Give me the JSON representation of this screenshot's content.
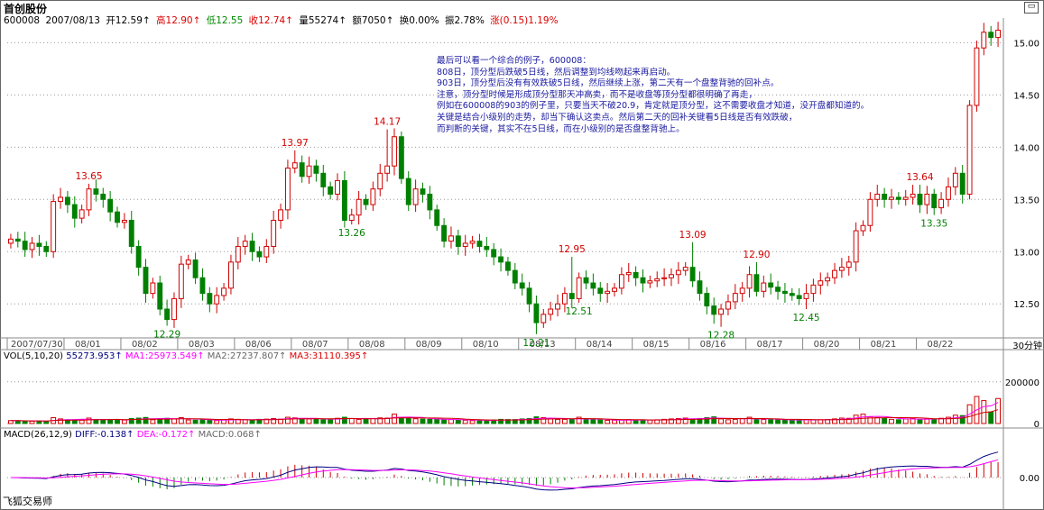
{
  "app": {
    "stock_name": "首创股份",
    "timeframe": "30分钟",
    "brand": "飞狐交易师",
    "title_button_icon": "restore-window-icon"
  },
  "quote": {
    "code": "600008",
    "date": "2007/08/13",
    "open": "开12.59↑",
    "high": "高12.90↑",
    "low": "低12.55",
    "close": "收12.74↑",
    "volume": "量55274↑",
    "amount": "额7050↑",
    "turnover": "换0.00%",
    "amplitude": "振2.78%",
    "change": "涨(0.15)1.19%"
  },
  "note": [
    "最后可以看一个综合的例子，600008：",
    "808日，顶分型后跌破5日线，然后调整到均线吻起来再启动。",
    "903日，顶分型后没有有效跌破5日线，然后继续上涨，第二天有一个盘整背驰的回补点。",
    "注意，顶分型时候是形成顶分型那天冲高卖，而不是收盘等顶分型都很明确了再走，",
    "例如在600008的903的例子里，只要当天不破20.9，肯定就是顶分型，这不需要收盘才知道，没开盘都知道的。",
    "关键是结合小级别的走势，却当下确认这卖点。然后第二天的回补关键看5日线是否有效跌破，",
    "而判断的关键，其实不在5日线，而在小级别的是否盘整背驰上。"
  ],
  "colors": {
    "up": "#d00000",
    "down": "#008000",
    "ma1": "#ff00ff",
    "ma3": "#d00000",
    "diff": "#000080",
    "dea": "#ff00ff",
    "note": "#1a1aa0"
  },
  "price_axis": {
    "min": 12.2,
    "max": 15.15,
    "ticks": [
      "15.00",
      "14.50",
      "14.00",
      "13.50",
      "13.00",
      "12.50"
    ]
  },
  "vol_axis": {
    "ticks": [
      "200000",
      "0"
    ]
  },
  "macd_axis": {
    "ticks": [
      "0.00"
    ]
  },
  "date_labels": [
    "2007/07/30",
    "08/01",
    "08/02",
    "08/03",
    "08/06",
    "08/07",
    "08/08",
    "08/09",
    "08/10",
    "08/13",
    "08/14",
    "08/15",
    "08/16",
    "08/17",
    "08/20",
    "08/21",
    "08/22"
  ],
  "vol_header": {
    "label": "VOL(5,10,20)",
    "vol": "55273.953↑",
    "ma1": "MA1:25973.549↑",
    "ma2": "MA2:27237.807↑",
    "ma3": "MA3:31110.395↑"
  },
  "macd_header": {
    "label": "MACD(26,12,9)",
    "diff": "DIFF:-0.138↑",
    "dea": "DEA:-0.172↑",
    "macd": "MACD:0.068↑"
  },
  "chart_data": {
    "type": "candlestick",
    "bars_per_day": 8,
    "annotations": [
      {
        "text": "13.65",
        "kind": "high",
        "bar": 11,
        "value": 13.65
      },
      {
        "text": "12.29",
        "kind": "low",
        "bar": 22,
        "value": 12.29
      },
      {
        "text": "13.97",
        "kind": "high",
        "bar": 40,
        "value": 13.97
      },
      {
        "text": "13.26",
        "kind": "low",
        "bar": 48,
        "value": 13.26
      },
      {
        "text": "14.17",
        "kind": "high",
        "bar": 53,
        "value": 14.17
      },
      {
        "text": "12.21",
        "kind": "low",
        "bar": 74,
        "value": 12.21
      },
      {
        "text": "12.95",
        "kind": "high",
        "bar": 79,
        "value": 12.95
      },
      {
        "text": "12.51",
        "kind": "low",
        "bar": 80,
        "value": 12.51
      },
      {
        "text": "13.09",
        "kind": "high",
        "bar": 96,
        "value": 13.09
      },
      {
        "text": "12.28",
        "kind": "low",
        "bar": 100,
        "value": 12.28
      },
      {
        "text": "12.90",
        "kind": "high",
        "bar": 105,
        "value": 12.9
      },
      {
        "text": "12.45",
        "kind": "low",
        "bar": 112,
        "value": 12.45
      },
      {
        "text": "13.64",
        "kind": "high",
        "bar": 128,
        "value": 13.64
      },
      {
        "text": "13.35",
        "kind": "low",
        "bar": 130,
        "value": 13.35
      }
    ],
    "close": [
      13.12,
      13.1,
      13.02,
      13.08,
      13.05,
      13.0,
      13.48,
      13.52,
      13.45,
      13.32,
      13.4,
      13.6,
      13.55,
      13.5,
      13.38,
      13.28,
      13.3,
      13.05,
      12.85,
      12.6,
      12.7,
      12.45,
      12.35,
      12.55,
      12.88,
      12.92,
      12.75,
      12.6,
      12.5,
      12.58,
      12.65,
      12.9,
      13.05,
      13.1,
      13.0,
      12.95,
      13.05,
      13.3,
      13.4,
      13.8,
      13.85,
      13.72,
      13.82,
      13.75,
      13.62,
      13.55,
      13.68,
      13.3,
      13.35,
      13.5,
      13.45,
      13.6,
      13.75,
      13.82,
      14.1,
      13.7,
      13.45,
      13.6,
      13.55,
      13.4,
      13.25,
      13.1,
      13.15,
      13.05,
      13.08,
      13.1,
      13.05,
      13.02,
      12.95,
      12.9,
      12.82,
      12.7,
      12.65,
      12.5,
      12.32,
      12.4,
      12.45,
      12.5,
      12.6,
      12.55,
      12.75,
      12.7,
      12.65,
      12.6,
      12.62,
      12.65,
      12.78,
      12.8,
      12.75,
      12.7,
      12.72,
      12.74,
      12.75,
      12.78,
      12.82,
      12.85,
      12.72,
      12.6,
      12.48,
      12.4,
      12.45,
      12.52,
      12.6,
      12.65,
      12.78,
      12.62,
      12.7,
      12.66,
      12.62,
      12.6,
      12.58,
      12.55,
      12.6,
      12.68,
      12.72,
      12.75,
      12.82,
      12.85,
      12.9,
      13.2,
      13.25,
      13.5,
      13.55,
      13.5,
      13.52,
      13.5,
      13.52,
      13.55,
      13.45,
      13.55,
      13.42,
      13.5,
      13.62,
      13.75,
      13.55,
      14.4,
      14.95,
      15.1,
      15.05,
      15.12
    ],
    "volume": [
      14000,
      13500,
      12000,
      11000,
      12000,
      11000,
      28000,
      22000,
      18000,
      17000,
      16000,
      26000,
      19000,
      18000,
      17500,
      17000,
      16500,
      24000,
      26000,
      29000,
      18000,
      23000,
      25000,
      22000,
      28000,
      17000,
      16000,
      18000,
      15000,
      14000,
      17000,
      22000,
      20000,
      18000,
      17000,
      20000,
      21000,
      24000,
      21000,
      30000,
      27000,
      24000,
      22000,
      20000,
      18000,
      21000,
      25000,
      30000,
      24000,
      20000,
      22000,
      24000,
      27000,
      26000,
      45000,
      30000,
      26000,
      23000,
      21000,
      20000,
      20000,
      18000,
      19000,
      17000,
      16000,
      14000,
      15000,
      14000,
      17000,
      20000,
      19000,
      19000,
      22000,
      24000,
      32000,
      28000,
      23000,
      19000,
      20000,
      21000,
      30000,
      19000,
      18000,
      17000,
      15000,
      16000,
      17000,
      18000,
      17000,
      16000,
      17000,
      18000,
      20000,
      22000,
      24000,
      26000,
      21000,
      24000,
      28000,
      32000,
      22000,
      18000,
      20000,
      23000,
      30000,
      20000,
      19000,
      18000,
      17000,
      16000,
      17000,
      18000,
      18000,
      17000,
      18000,
      19000,
      22000,
      26000,
      25000,
      40000,
      45000,
      32000,
      28000,
      24000,
      20000,
      18000,
      22000,
      24000,
      20000,
      21000,
      22000,
      25000,
      30000,
      40000,
      38000,
      90000,
      130000,
      110000,
      55273,
      120000
    ]
  }
}
